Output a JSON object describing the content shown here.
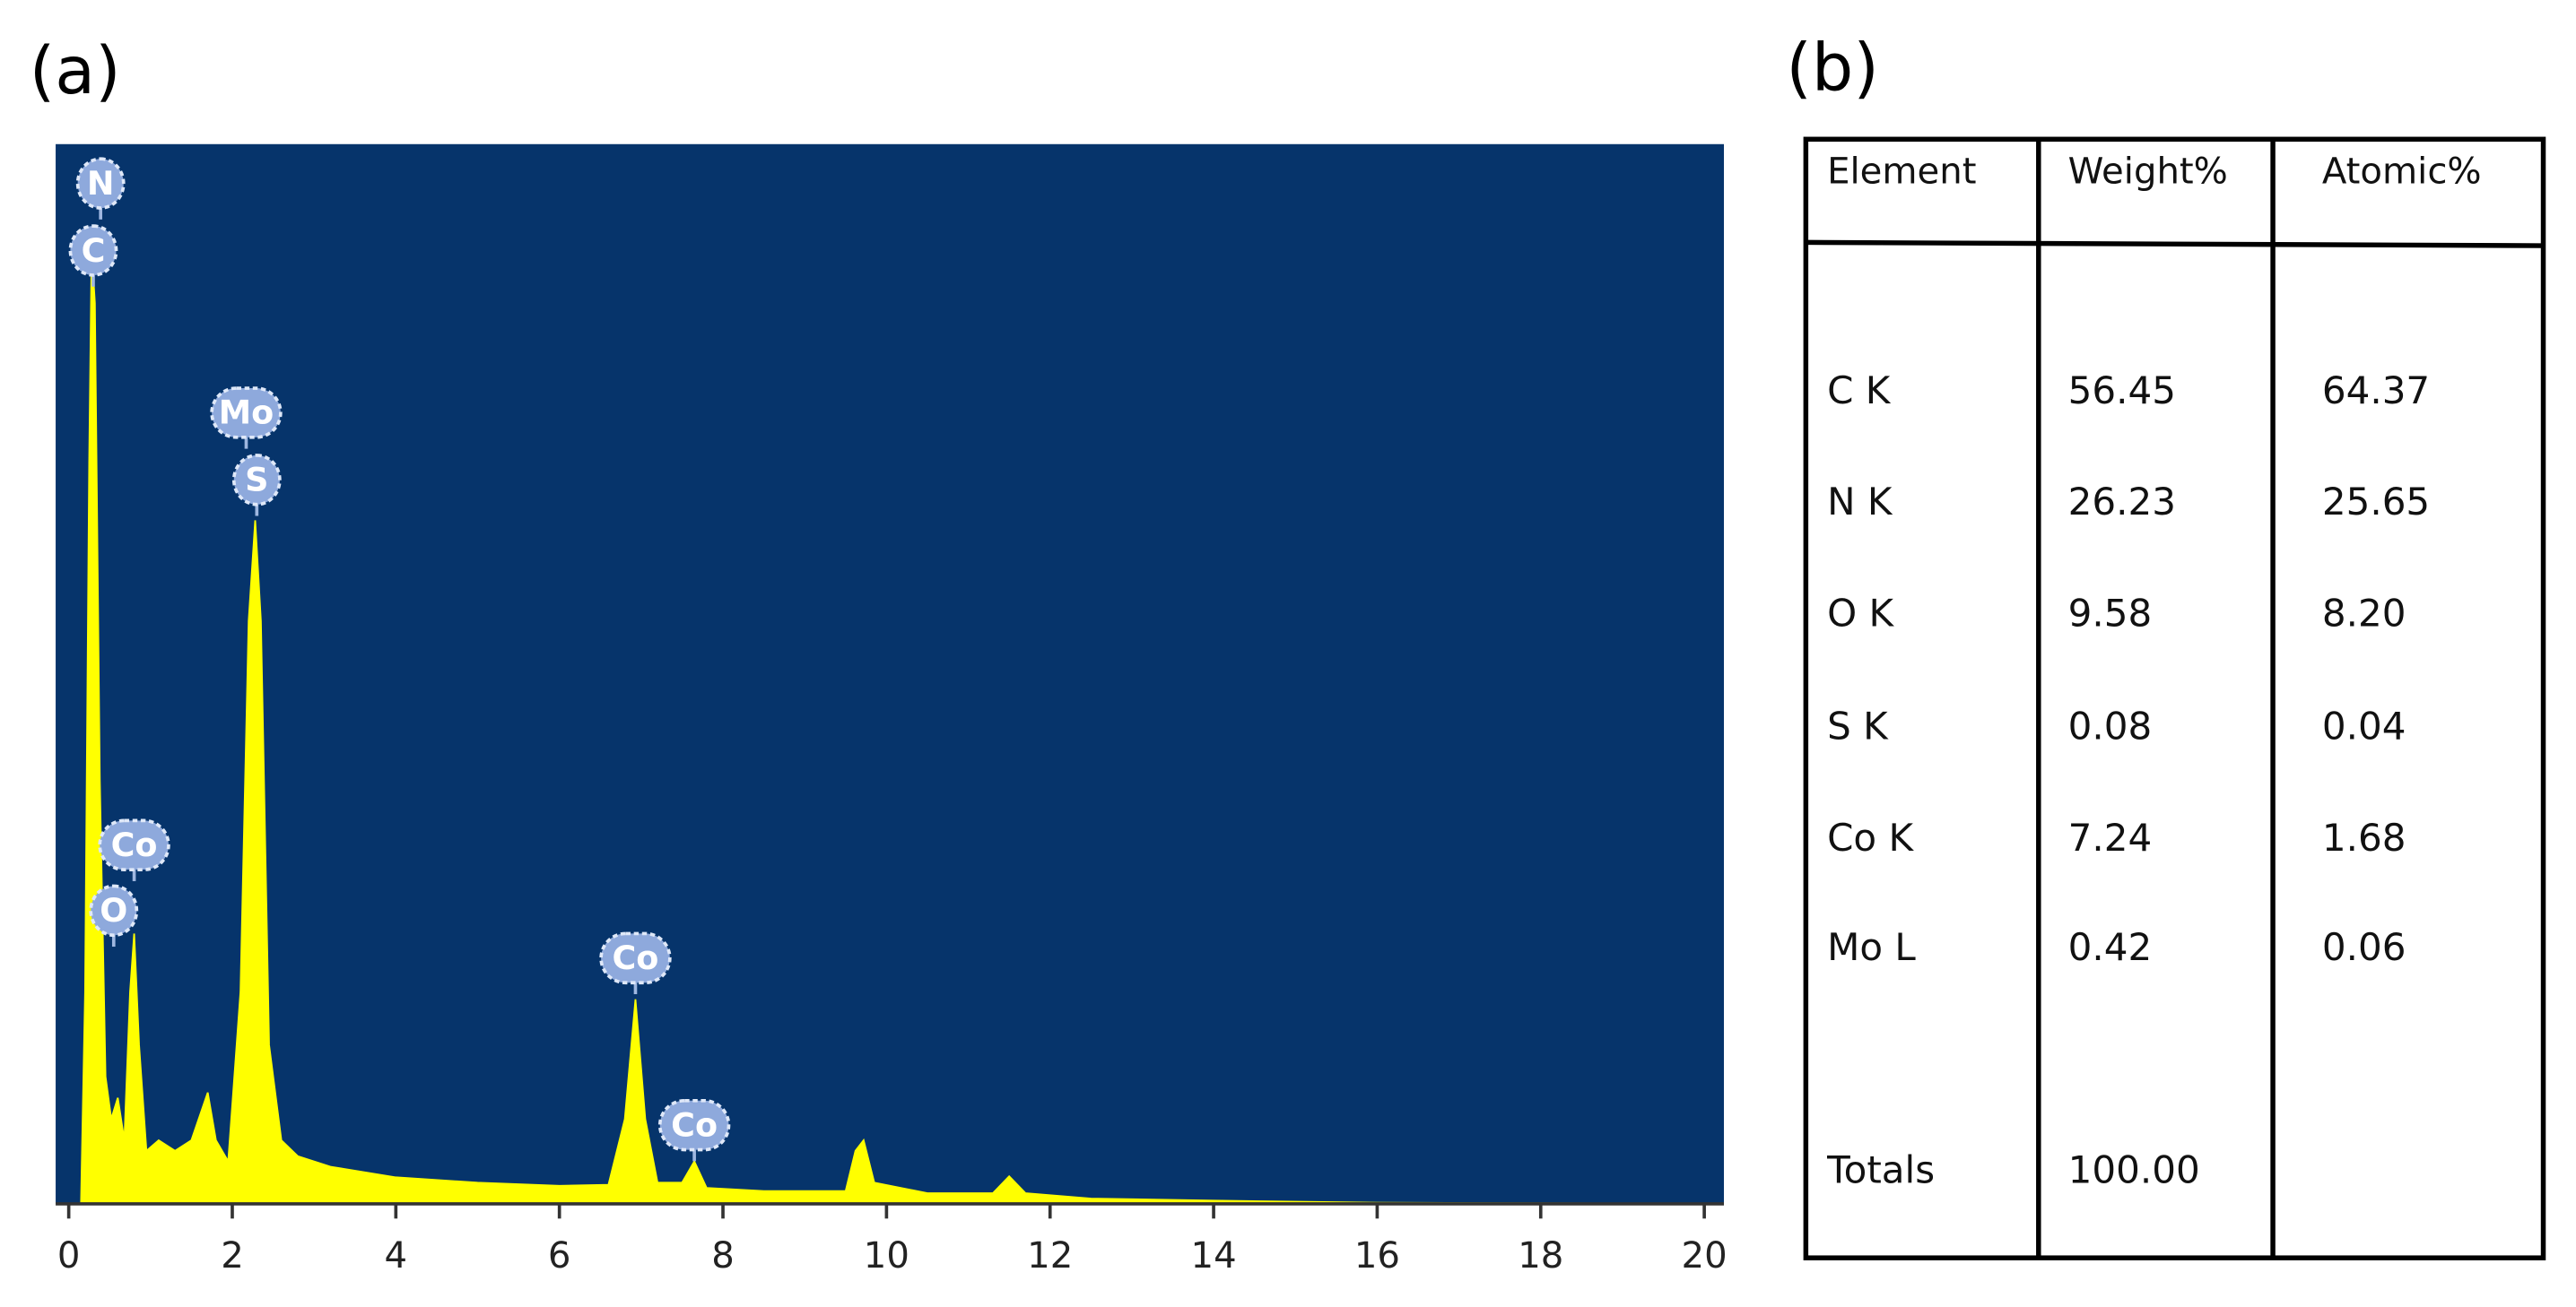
{
  "panel_labels": [
    "(a)",
    "(b)"
  ],
  "chart_data": {
    "type": "area",
    "color": "#ffff00",
    "background": "#06346b",
    "x": [
      0.15,
      0.2,
      0.25,
      0.28,
      0.32,
      0.38,
      0.45,
      0.52,
      0.6,
      0.68,
      0.75,
      0.8,
      0.86,
      0.95,
      1.1,
      1.3,
      1.5,
      1.7,
      1.8,
      1.95,
      2.1,
      2.2,
      2.28,
      2.35,
      2.45,
      2.6,
      2.8,
      3.2,
      4,
      5,
      6,
      6.6,
      6.8,
      6.93,
      7.05,
      7.2,
      7.5,
      7.65,
      7.8,
      8.5,
      9.5,
      9.62,
      9.72,
      9.85,
      10.5,
      11.3,
      11.5,
      11.7,
      12.5,
      14,
      16,
      20.2
    ],
    "values": [
      0,
      20,
      70,
      90,
      85,
      40,
      12,
      8,
      10,
      6,
      20,
      25.5,
      15,
      5,
      6,
      5,
      6,
      10.5,
      6,
      4,
      20,
      55,
      64.5,
      55,
      15,
      6,
      4.5,
      3.5,
      2.5,
      2,
      1.7,
      1.8,
      8,
      19.3,
      8,
      2,
      2,
      4,
      1.5,
      1.2,
      1.2,
      5,
      6,
      2,
      1,
      1,
      2.6,
      1,
      0.5,
      0.3,
      0.1,
      0
    ],
    "xlim": [
      -0.16,
      20.24
    ],
    "ylim": [
      0,
      100
    ],
    "xticks": [
      0,
      2,
      4,
      6,
      8,
      10,
      12,
      14,
      16,
      18,
      20
    ],
    "annotations": [
      {
        "text": "N",
        "x": 0.39
      },
      {
        "text": "C",
        "x": 0.3
      },
      {
        "text": "Mo",
        "x": 2.17
      },
      {
        "text": "S",
        "x": 2.3
      },
      {
        "text": "Co",
        "x": 0.8
      },
      {
        "text": "O",
        "x": 0.55
      },
      {
        "text": "Co",
        "x": 6.93
      },
      {
        "text": "Co",
        "x": 7.65
      }
    ]
  },
  "table": {
    "header": [
      "Element",
      "Weight%",
      "Atomic%"
    ],
    "rows": [
      [
        "C K",
        "56.45",
        "64.37"
      ],
      [
        "N K",
        "26.23",
        "25.65"
      ],
      [
        "O K",
        "9.58",
        "8.20"
      ],
      [
        "S K",
        "0.08",
        "0.04"
      ],
      [
        "Co K",
        "7.24",
        "1.68"
      ],
      [
        "Mo L",
        "0.42",
        "0.06"
      ],
      [
        "Totals",
        "100.00"
      ]
    ]
  }
}
